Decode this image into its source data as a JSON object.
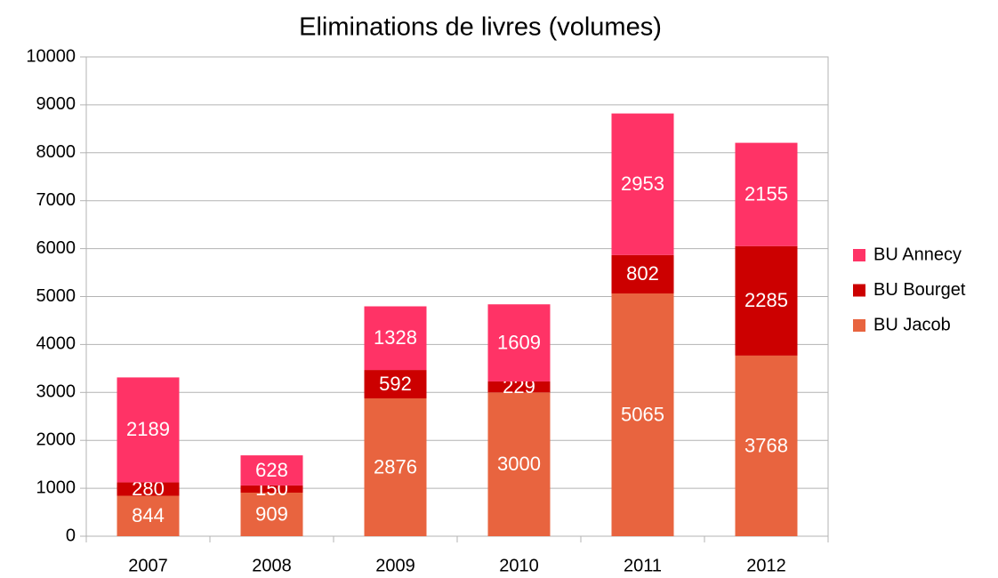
{
  "chart_data": {
    "type": "stacked_bar",
    "title": "Eliminations de livres (volumes)",
    "categories": [
      "2007",
      "2008",
      "2009",
      "2010",
      "2011",
      "2012"
    ],
    "series": [
      {
        "name": "BU Jacob",
        "color": "#e8643f",
        "values": [
          844,
          909,
          2876,
          3000,
          5065,
          3768
        ]
      },
      {
        "name": "BU Bourget",
        "color": "#cc0000",
        "values": [
          280,
          150,
          592,
          229,
          802,
          2285
        ]
      },
      {
        "name": "BU Annecy",
        "color": "#ff3366",
        "values": [
          2189,
          628,
          1328,
          1609,
          2953,
          2155
        ]
      }
    ],
    "ylim": [
      0,
      10000
    ],
    "yticks": [
      0,
      1000,
      2000,
      3000,
      4000,
      5000,
      6000,
      7000,
      8000,
      9000,
      10000
    ],
    "grid": true,
    "legend": "right"
  }
}
